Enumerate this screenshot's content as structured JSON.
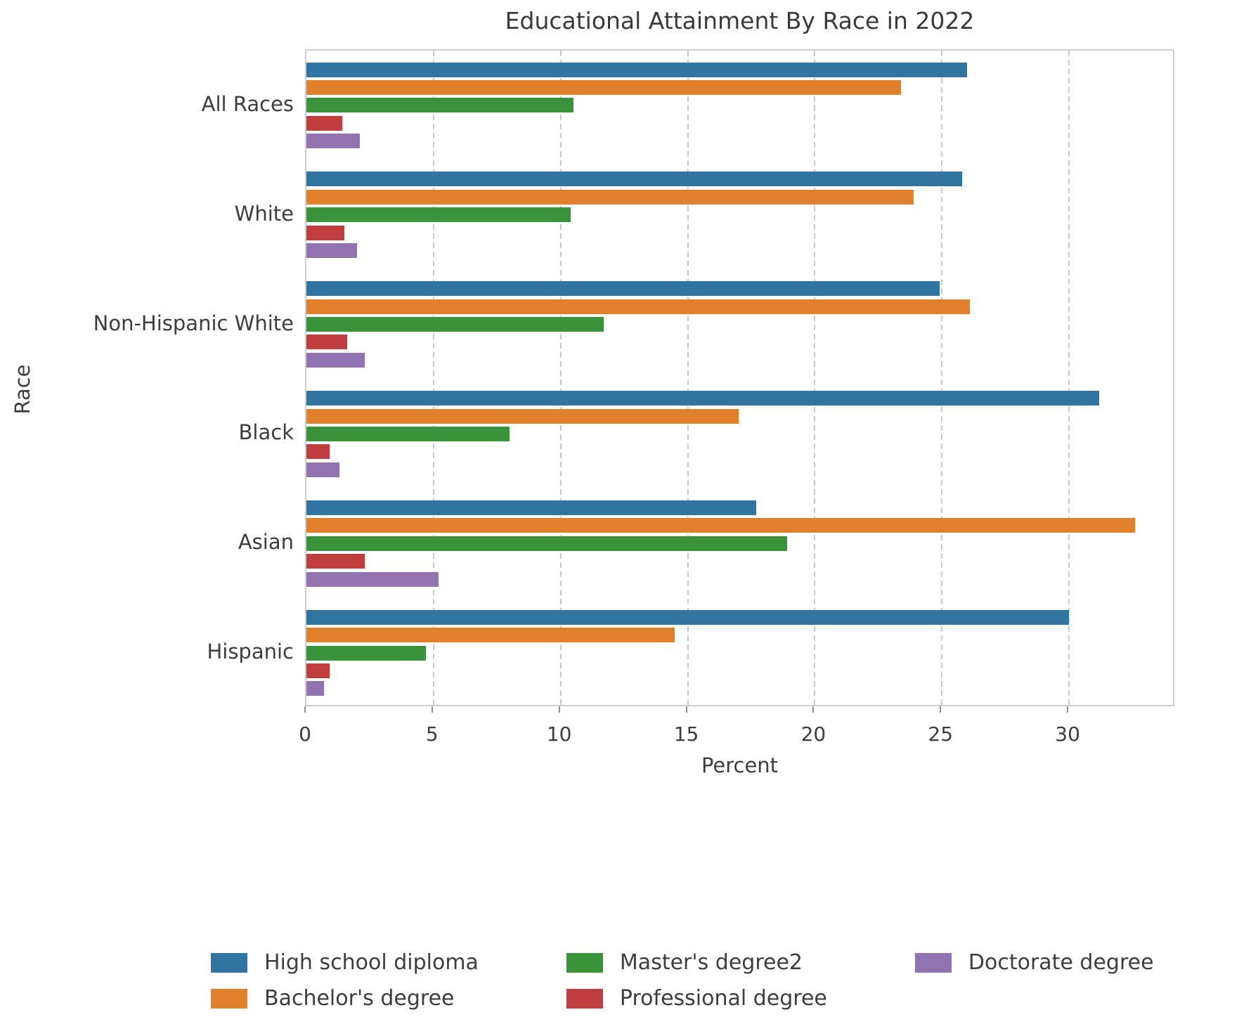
{
  "title": "Educational Attainment By Race in 2022",
  "chart_data": {
    "type": "bar",
    "orientation": "horizontal",
    "title": "Educational Attainment By Race in 2022",
    "xlabel": "Percent",
    "ylabel": "Race",
    "categories": [
      "All Races",
      "White",
      "Non-Hispanic White",
      "Black",
      "Asian",
      "Hispanic"
    ],
    "series": [
      {
        "name": "High school diploma",
        "color": "#3274a1",
        "values": [
          26.0,
          25.8,
          24.9,
          31.2,
          17.7,
          30.0
        ]
      },
      {
        "name": "Bachelor's degree",
        "color": "#e1812c",
        "values": [
          23.4,
          23.9,
          26.1,
          17.0,
          32.6,
          14.5
        ]
      },
      {
        "name": "Master's degree2",
        "color": "#3a923a",
        "values": [
          10.5,
          10.4,
          11.7,
          8.0,
          18.9,
          4.7
        ]
      },
      {
        "name": "Professional degree",
        "color": "#c03d3e",
        "values": [
          1.4,
          1.5,
          1.6,
          0.9,
          2.3,
          0.9
        ]
      },
      {
        "name": "Doctorate degree",
        "color": "#9372b2",
        "values": [
          2.1,
          2.0,
          2.3,
          1.3,
          5.2,
          0.7
        ]
      }
    ],
    "xlim": [
      0,
      34.2
    ],
    "xticks": [
      0,
      5,
      10,
      15,
      20,
      25,
      30
    ],
    "grid": "vertical-dashed",
    "legend_position": "bottom"
  }
}
